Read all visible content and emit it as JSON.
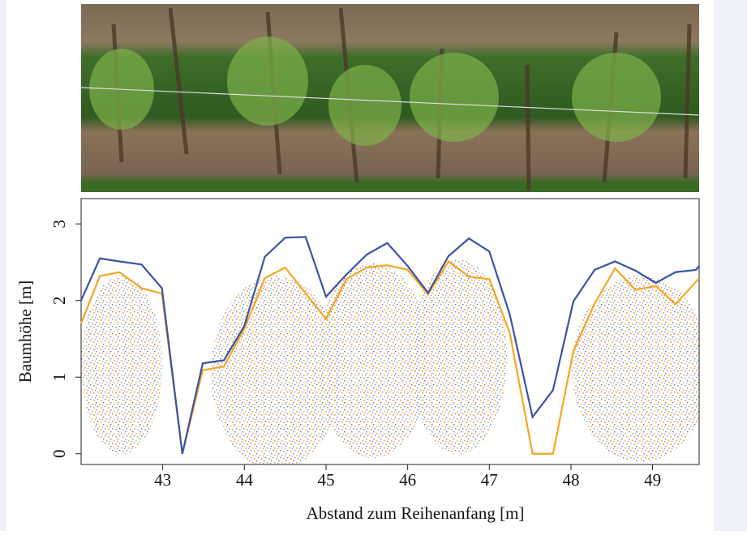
{
  "chart_data": {
    "type": "line",
    "xlabel": "Abstand zum Reihenanfang [m]",
    "ylabel": "Baumhöhe [m]",
    "xlim": [
      42.0,
      49.57
    ],
    "xticks": [
      43,
      44,
      45,
      46,
      47,
      48,
      49
    ],
    "ylim": [
      -0.14,
      3.33
    ],
    "yticks": [
      0,
      1,
      2,
      3
    ],
    "series": [
      {
        "color": "#3a53a4",
        "x": [
          42.0,
          42.23,
          42.47,
          42.74,
          42.99,
          43.24,
          43.49,
          43.75,
          44.0,
          44.25,
          44.5,
          44.75,
          45.0,
          45.25,
          45.5,
          45.75,
          46.0,
          46.25,
          46.5,
          46.75,
          47.0,
          47.25,
          47.53,
          47.78,
          48.03,
          48.29,
          48.54,
          48.79,
          49.04,
          49.28,
          49.53,
          49.57
        ],
        "values": [
          2.0,
          2.55,
          2.51,
          2.47,
          2.16,
          0,
          1.18,
          1.22,
          1.67,
          2.57,
          2.82,
          2.83,
          2.05,
          2.34,
          2.6,
          2.75,
          2.45,
          2.1,
          2.58,
          2.81,
          2.64,
          1.82,
          0.48,
          0.83,
          1.99,
          2.4,
          2.51,
          2.39,
          2.23,
          2.37,
          2.4,
          2.45
        ]
      },
      {
        "color": "#f5a623",
        "x": [
          42.0,
          42.23,
          42.47,
          42.74,
          42.99,
          43.24,
          43.49,
          43.75,
          44.0,
          44.25,
          44.5,
          44.75,
          45.0,
          45.25,
          45.5,
          45.75,
          46.0,
          46.25,
          46.5,
          46.75,
          47.0,
          47.25,
          47.53,
          47.78,
          48.03,
          48.29,
          48.54,
          48.79,
          49.04,
          49.28,
          49.57
        ],
        "values": [
          1.7,
          2.32,
          2.37,
          2.16,
          2.09,
          0,
          1.09,
          1.14,
          1.63,
          2.29,
          2.43,
          2.09,
          1.76,
          2.28,
          2.43,
          2.46,
          2.4,
          2.08,
          2.51,
          2.31,
          2.28,
          1.58,
          0,
          0,
          1.34,
          1.96,
          2.42,
          2.14,
          2.19,
          1.95,
          2.29
        ]
      }
    ]
  }
}
